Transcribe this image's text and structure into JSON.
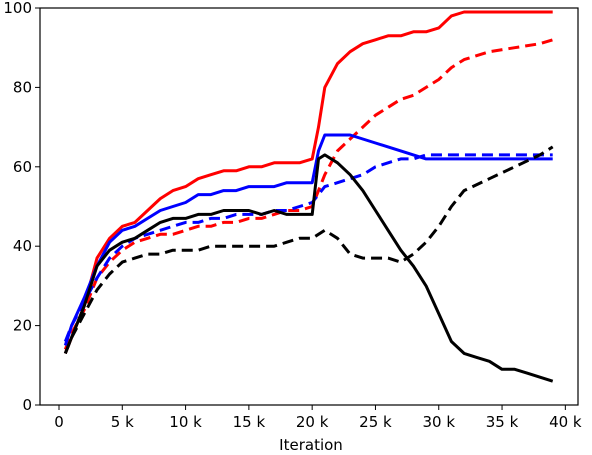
{
  "chart_data": {
    "type": "line",
    "title": "",
    "xlabel": "Iteration",
    "ylabel": "",
    "xlim": [
      -1500,
      41000
    ],
    "ylim": [
      0,
      100
    ],
    "grid": false,
    "legend": "none",
    "x_ticks": [
      {
        "value": 0,
        "label": "0"
      },
      {
        "value": 5000,
        "label": "5 k"
      },
      {
        "value": 10000,
        "label": "10 k"
      },
      {
        "value": 15000,
        "label": "15 k"
      },
      {
        "value": 20000,
        "label": "20 k"
      },
      {
        "value": 25000,
        "label": "25 k"
      },
      {
        "value": 30000,
        "label": "30 k"
      },
      {
        "value": 35000,
        "label": "35 k"
      },
      {
        "value": 40000,
        "label": "40 k"
      }
    ],
    "y_ticks": [
      {
        "value": 0,
        "label": "0"
      },
      {
        "value": 20,
        "label": "20"
      },
      {
        "value": 40,
        "label": "40"
      },
      {
        "value": 60,
        "label": "60"
      },
      {
        "value": 80,
        "label": "80"
      },
      {
        "value": 100,
        "label": "100"
      }
    ],
    "series": [
      {
        "color": "#ff0000",
        "dash": "solid",
        "x": [
          500,
          1000,
          2000,
          3000,
          4000,
          5000,
          6000,
          7000,
          8000,
          9000,
          10000,
          11000,
          12000,
          13000,
          14000,
          15000,
          16000,
          17000,
          18000,
          19000,
          20000,
          20500,
          21000,
          22000,
          23000,
          24000,
          25000,
          26000,
          27000,
          28000,
          29000,
          30000,
          31000,
          32000,
          34000,
          36000,
          38000,
          39000
        ],
        "values": [
          13,
          17,
          25,
          37,
          42,
          45,
          46,
          49,
          52,
          54,
          55,
          57,
          58,
          59,
          59,
          60,
          60,
          61,
          61,
          61,
          62,
          70,
          80,
          86,
          89,
          91,
          92,
          93,
          93,
          94,
          94,
          95,
          98,
          99,
          99,
          99,
          99,
          99
        ]
      },
      {
        "color": "#ff0000",
        "dash": "dashed",
        "x": [
          500,
          1000,
          2000,
          3000,
          4000,
          5000,
          6000,
          7000,
          8000,
          9000,
          10000,
          11000,
          12000,
          13000,
          14000,
          15000,
          16000,
          17000,
          18000,
          19000,
          20000,
          21000,
          22000,
          23000,
          24000,
          25000,
          26000,
          27000,
          28000,
          29000,
          30000,
          31000,
          32000,
          34000,
          36000,
          38000,
          39000
        ],
        "values": [
          14,
          18,
          24,
          32,
          36,
          39,
          41,
          42,
          43,
          43,
          44,
          45,
          45,
          46,
          46,
          47,
          47,
          48,
          49,
          49,
          50,
          58,
          64,
          67,
          70,
          73,
          75,
          77,
          78,
          80,
          82,
          85,
          87,
          89,
          90,
          91,
          92
        ]
      },
      {
        "color": "#0000ff",
        "dash": "solid",
        "x": [
          500,
          1000,
          2000,
          3000,
          4000,
          5000,
          6000,
          7000,
          8000,
          9000,
          10000,
          11000,
          12000,
          13000,
          14000,
          15000,
          16000,
          17000,
          18000,
          19000,
          20000,
          20500,
          21000,
          22000,
          23000,
          24000,
          25000,
          26000,
          27000,
          28000,
          29000,
          30000,
          31000,
          32000,
          34000,
          36000,
          38000,
          39000
        ],
        "values": [
          15,
          20,
          27,
          35,
          41,
          44,
          45,
          47,
          49,
          50,
          51,
          53,
          53,
          54,
          54,
          55,
          55,
          55,
          56,
          56,
          56,
          64,
          68,
          68,
          68,
          67,
          66,
          65,
          64,
          63,
          62,
          62,
          62,
          62,
          62,
          62,
          62,
          62
        ]
      },
      {
        "color": "#0000ff",
        "dash": "dashed",
        "x": [
          500,
          1000,
          2000,
          3000,
          4000,
          5000,
          6000,
          7000,
          8000,
          9000,
          10000,
          11000,
          12000,
          13000,
          14000,
          15000,
          16000,
          17000,
          18000,
          19000,
          20000,
          21000,
          22000,
          23000,
          24000,
          25000,
          26000,
          27000,
          28000,
          29000,
          30000,
          31000,
          32000,
          34000,
          36000,
          38000,
          39000
        ],
        "values": [
          16,
          20,
          26,
          32,
          37,
          40,
          42,
          43,
          44,
          45,
          46,
          46,
          47,
          47,
          48,
          48,
          48,
          49,
          49,
          50,
          51,
          55,
          56,
          57,
          58,
          60,
          61,
          62,
          62,
          63,
          63,
          63,
          63,
          63,
          63,
          63,
          63
        ]
      },
      {
        "color": "#000000",
        "dash": "solid",
        "x": [
          500,
          1000,
          2000,
          3000,
          4000,
          5000,
          6000,
          7000,
          8000,
          9000,
          10000,
          11000,
          12000,
          13000,
          14000,
          15000,
          16000,
          17000,
          18000,
          19000,
          20000,
          20500,
          21000,
          22000,
          23000,
          24000,
          25000,
          26000,
          27000,
          28000,
          29000,
          30000,
          31000,
          32000,
          33000,
          34000,
          35000,
          36000,
          37000,
          38000,
          39000
        ],
        "values": [
          13,
          17,
          25,
          35,
          39,
          41,
          42,
          44,
          46,
          47,
          47,
          48,
          48,
          49,
          49,
          49,
          48,
          49,
          48,
          48,
          48,
          62,
          63,
          61,
          58,
          54,
          49,
          44,
          39,
          35,
          30,
          23,
          16,
          13,
          12,
          11,
          9,
          9,
          8,
          7,
          6
        ]
      },
      {
        "color": "#000000",
        "dash": "dashed",
        "x": [
          500,
          1000,
          2000,
          3000,
          4000,
          5000,
          6000,
          7000,
          8000,
          9000,
          10000,
          11000,
          12000,
          13000,
          14000,
          15000,
          16000,
          17000,
          18000,
          19000,
          20000,
          21000,
          22000,
          23000,
          24000,
          25000,
          26000,
          27000,
          28000,
          29000,
          30000,
          31000,
          32000,
          34000,
          36000,
          38000,
          39000
        ],
        "values": [
          13,
          17,
          23,
          29,
          33,
          36,
          37,
          38,
          38,
          39,
          39,
          39,
          40,
          40,
          40,
          40,
          40,
          40,
          41,
          42,
          42,
          44,
          42,
          38,
          37,
          37,
          37,
          36,
          38,
          41,
          45,
          50,
          54,
          57,
          60,
          63,
          65
        ]
      }
    ]
  }
}
